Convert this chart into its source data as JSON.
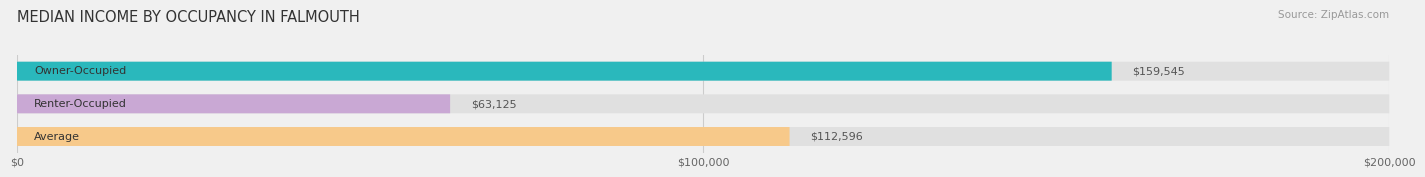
{
  "title": "MEDIAN INCOME BY OCCUPANCY IN FALMOUTH",
  "source": "Source: ZipAtlas.com",
  "categories": [
    "Owner-Occupied",
    "Renter-Occupied",
    "Average"
  ],
  "values": [
    159545,
    63125,
    112596
  ],
  "labels": [
    "$159,545",
    "$63,125",
    "$112,596"
  ],
  "bar_colors": [
    "#2ab8bc",
    "#c9a8d4",
    "#f7c98a"
  ],
  "background_color": "#f0f0f0",
  "bar_bg_color": "#e0e0e0",
  "xlim": [
    0,
    200000
  ],
  "xticks": [
    0,
    100000,
    200000
  ],
  "xtick_labels": [
    "$0",
    "$100,000",
    "$200,000"
  ],
  "title_fontsize": 10.5,
  "label_fontsize": 8.0,
  "tick_fontsize": 8.0,
  "source_fontsize": 7.5,
  "bar_height": 0.58
}
